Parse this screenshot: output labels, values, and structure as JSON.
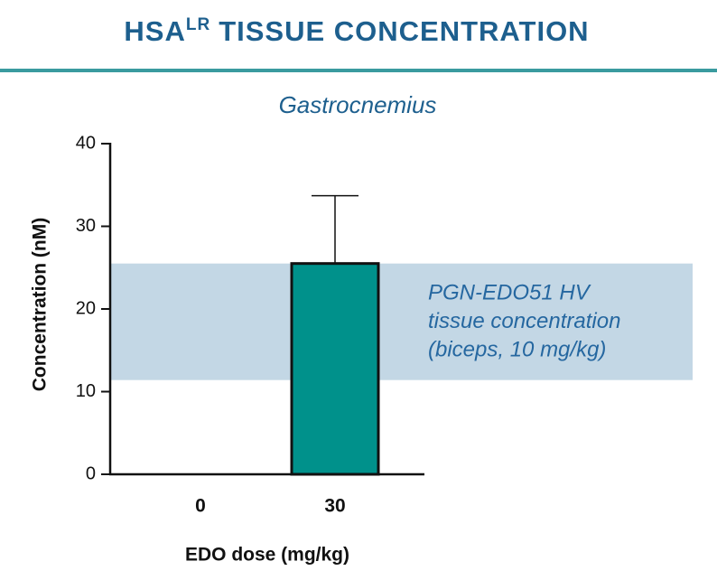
{
  "chart_data": {
    "type": "bar",
    "title_parts": [
      "HSA",
      "LR",
      "TISSUE CONCENTRATION"
    ],
    "subtitle": "Gastrocnemius",
    "y_label": "Concentration (nM)",
    "x_label": "EDO dose (mg/kg)",
    "categories": [
      "0",
      "30"
    ],
    "values": [
      0,
      25.5
    ],
    "errors": [
      null,
      8.2
    ],
    "color": "#00918b",
    "ylim": [
      0,
      40
    ],
    "yticks": [
      0,
      10,
      20,
      30,
      40
    ],
    "reference_band": {
      "range": [
        11.4,
        25.5
      ],
      "color": "#c3d7e5",
      "label_lines": [
        "PGN-EDO51 HV",
        "tissue concentration",
        "(biceps, 10 mg/kg)"
      ]
    }
  }
}
